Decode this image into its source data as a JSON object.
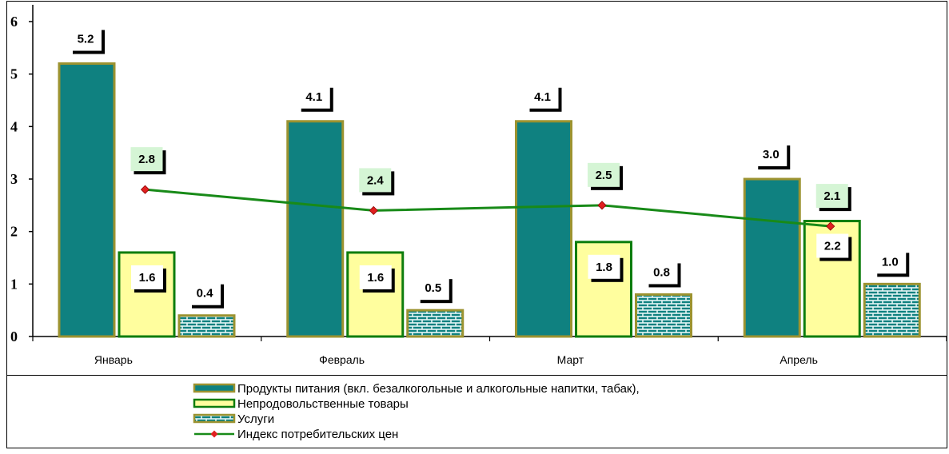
{
  "chart_data": {
    "type": "bar",
    "categories": [
      "Январь",
      "Февраль",
      "Март",
      "Апрель"
    ],
    "ylim": [
      0,
      6
    ],
    "yticks": [
      "0",
      "1",
      "2",
      "3",
      "4",
      "5",
      "6"
    ],
    "grid": false,
    "legend_position": "bottom",
    "series": [
      {
        "name": "Продукты питания (вкл. безалкогольные и алкогольные напитки, табак),",
        "kind": "bar",
        "values": [
          5.2,
          4.1,
          4.1,
          3.0
        ],
        "labels": [
          "5.2",
          "4.1",
          "4.1",
          "3.0"
        ],
        "fill": "#0f8180",
        "stroke": "#9c9330"
      },
      {
        "name": "Непродовольственные товары",
        "kind": "bar",
        "values": [
          1.6,
          1.6,
          1.8,
          2.2
        ],
        "labels": [
          "1.6",
          "1.6",
          "1.8",
          "2.2"
        ],
        "fill": "#fffe9e",
        "stroke": "#0d7d0d"
      },
      {
        "name": "Услуги",
        "kind": "bar",
        "pattern": "brick",
        "values": [
          0.4,
          0.5,
          0.8,
          1.0
        ],
        "labels": [
          "0.4",
          "0.5",
          "0.8",
          "1.0"
        ],
        "fill": "#0f8180",
        "stroke": "#9c9330"
      },
      {
        "name": "Индекс потребительских цен",
        "kind": "line",
        "values": [
          2.8,
          2.4,
          2.5,
          2.1
        ],
        "labels": [
          "2.8",
          "2.4",
          "2.5",
          "2.1"
        ],
        "color": "#188a18",
        "marker_color": "#e02020"
      }
    ]
  }
}
